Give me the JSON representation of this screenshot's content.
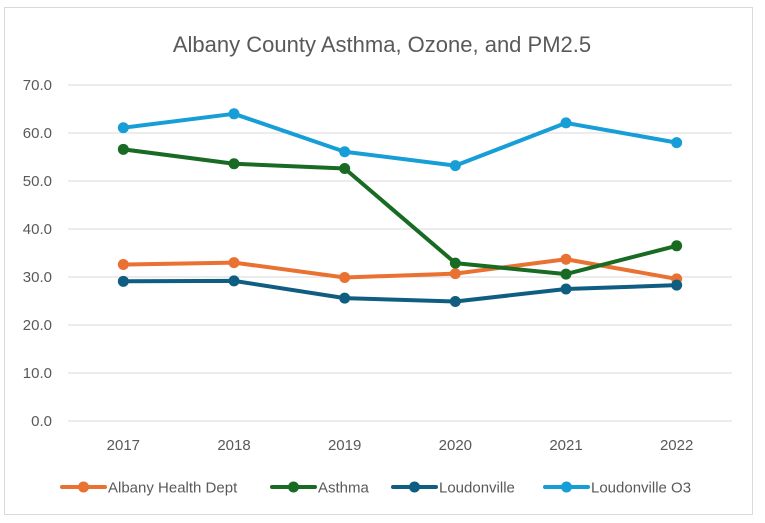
{
  "chart_data": {
    "type": "line",
    "title": "Albany County Asthma, Ozone, and PM2.5",
    "xlabel": "",
    "ylabel": "",
    "categories": [
      "2017",
      "2018",
      "2019",
      "2020",
      "2021",
      "2022"
    ],
    "ylim": [
      0,
      70
    ],
    "yticks": [
      "0.0",
      "10.0",
      "20.0",
      "30.0",
      "40.0",
      "50.0",
      "60.0",
      "70.0"
    ],
    "ytick_values": [
      0,
      10,
      20,
      30,
      40,
      50,
      60,
      70
    ],
    "grid": true,
    "legend_position": "bottom",
    "series": [
      {
        "name": "Albany Health Dept",
        "color": "#E97132",
        "values": [
          32.6,
          33.0,
          29.9,
          30.7,
          33.7,
          29.6
        ]
      },
      {
        "name": "Asthma",
        "color": "#196B24",
        "values": [
          56.6,
          53.6,
          52.6,
          32.9,
          30.6,
          36.5
        ]
      },
      {
        "name": "Loudonville",
        "color": "#0F5E82",
        "values": [
          29.1,
          29.2,
          25.6,
          24.9,
          27.5,
          28.3
        ]
      },
      {
        "name": "Loudonville O3",
        "color": "#179ED6",
        "values": [
          61.1,
          64.0,
          56.1,
          53.2,
          62.1,
          58.0
        ]
      }
    ]
  }
}
